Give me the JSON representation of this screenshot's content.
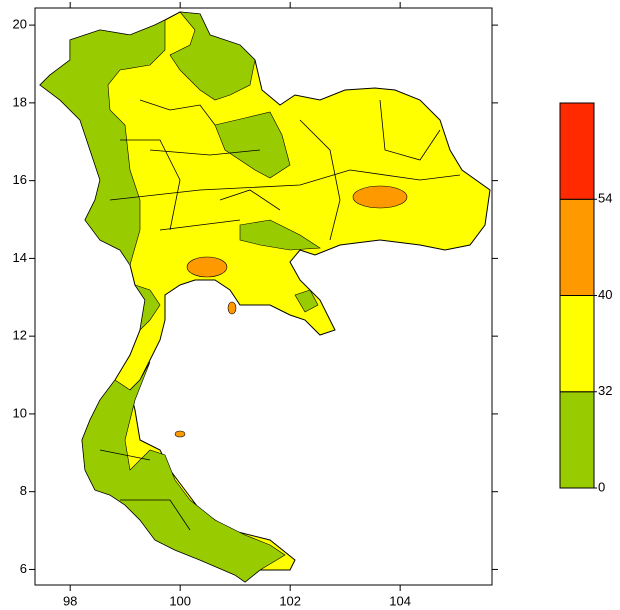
{
  "map": {
    "xlim": [
      97.36,
      105.67
    ],
    "ylim": [
      5.6,
      20.44
    ],
    "xticks": [
      98,
      100,
      102,
      104
    ],
    "yticks": [
      6,
      8,
      10,
      12,
      14,
      16,
      18,
      20
    ]
  },
  "colorbar": {
    "levels": [
      0,
      32,
      40,
      54
    ],
    "colors": [
      "#99cc00",
      "#ffff00",
      "#ff9900",
      "#ff2a00"
    ]
  }
}
